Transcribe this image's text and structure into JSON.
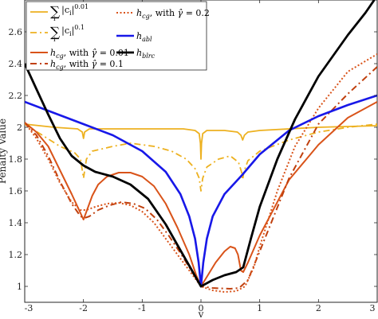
{
  "chart_data": {
    "type": "line",
    "title": "",
    "xlabel": "v",
    "ylabel": "Penalty Value",
    "xlim": [
      -3,
      3
    ],
    "ylim": [
      0.9,
      2.8
    ],
    "xticks": [
      -3,
      -2,
      -1,
      0,
      1,
      2,
      3
    ],
    "xtick_labels": [
      "-3",
      "-2",
      "-1",
      "0",
      "1",
      "2",
      "3"
    ],
    "yticks": [
      1,
      1.2,
      1.4,
      1.6,
      1.8,
      2,
      2.2,
      2.4,
      2.6
    ],
    "ytick_labels": [
      "1",
      "1.2",
      "1.4",
      "1.6",
      "1.8",
      "2",
      "2.2",
      "2.4",
      "2.6"
    ],
    "grid": false,
    "legend_position": "top-left",
    "series": [
      {
        "name": "∑|c_i|^0.01",
        "color": "#EDB120",
        "dash": "solid",
        "width": 1.8,
        "points": [
          [
            -3,
            2.02
          ],
          [
            -2.5,
            2.0
          ],
          [
            -2.1,
            1.99
          ],
          [
            -2.02,
            1.97
          ],
          [
            -2.0,
            1.93
          ],
          [
            -1.98,
            1.97
          ],
          [
            -1.9,
            1.99
          ],
          [
            -1.0,
            1.99
          ],
          [
            -0.3,
            1.99
          ],
          [
            -0.1,
            1.98
          ],
          [
            -0.03,
            1.96
          ],
          [
            -0.01,
            1.9
          ],
          [
            0,
            1.8
          ],
          [
            0.01,
            1.9
          ],
          [
            0.03,
            1.96
          ],
          [
            0.1,
            1.98
          ],
          [
            0.4,
            1.98
          ],
          [
            0.62,
            1.97
          ],
          [
            0.68,
            1.95
          ],
          [
            0.71,
            1.92
          ],
          [
            0.74,
            1.95
          ],
          [
            0.8,
            1.97
          ],
          [
            1.0,
            1.98
          ],
          [
            2.0,
            2.0
          ],
          [
            3,
            2.01
          ]
        ]
      },
      {
        "name": "∑|c_i|^0.1",
        "color": "#EDB120",
        "dash": "8,4,2,4",
        "width": 1.8,
        "points": [
          [
            -3,
            2.02
          ],
          [
            -2.7,
            1.95
          ],
          [
            -2.4,
            1.88
          ],
          [
            -2.15,
            1.84
          ],
          [
            -2.05,
            1.8
          ],
          [
            -2.0,
            1.68
          ],
          [
            -1.95,
            1.8
          ],
          [
            -1.85,
            1.85
          ],
          [
            -1.5,
            1.88
          ],
          [
            -1.2,
            1.9
          ],
          [
            -0.8,
            1.88
          ],
          [
            -0.5,
            1.85
          ],
          [
            -0.25,
            1.8
          ],
          [
            -0.1,
            1.74
          ],
          [
            -0.03,
            1.68
          ],
          [
            0,
            1.6
          ],
          [
            0.03,
            1.68
          ],
          [
            0.1,
            1.75
          ],
          [
            0.3,
            1.8
          ],
          [
            0.5,
            1.82
          ],
          [
            0.64,
            1.78
          ],
          [
            0.69,
            1.72
          ],
          [
            0.71,
            1.67
          ],
          [
            0.73,
            1.72
          ],
          [
            0.8,
            1.79
          ],
          [
            1.0,
            1.85
          ],
          [
            1.5,
            1.92
          ],
          [
            2.0,
            1.97
          ],
          [
            2.5,
            2.0
          ],
          [
            3,
            2.02
          ]
        ]
      },
      {
        "name": "h_cg, with γ̂ = 0.01",
        "color": "#D95319",
        "dash": "solid",
        "width": 2.0,
        "points": [
          [
            -3,
            2.03
          ],
          [
            -2.8,
            1.97
          ],
          [
            -2.6,
            1.88
          ],
          [
            -2.4,
            1.73
          ],
          [
            -2.2,
            1.58
          ],
          [
            -2.05,
            1.46
          ],
          [
            -2.0,
            1.42
          ],
          [
            -1.95,
            1.47
          ],
          [
            -1.85,
            1.57
          ],
          [
            -1.75,
            1.64
          ],
          [
            -1.6,
            1.69
          ],
          [
            -1.4,
            1.715
          ],
          [
            -1.2,
            1.715
          ],
          [
            -1.0,
            1.69
          ],
          [
            -0.8,
            1.63
          ],
          [
            -0.6,
            1.52
          ],
          [
            -0.4,
            1.37
          ],
          [
            -0.2,
            1.2
          ],
          [
            -0.08,
            1.07
          ],
          [
            0,
            1.0
          ],
          [
            0.1,
            1.06
          ],
          [
            0.25,
            1.15
          ],
          [
            0.4,
            1.22
          ],
          [
            0.5,
            1.25
          ],
          [
            0.58,
            1.24
          ],
          [
            0.63,
            1.2
          ],
          [
            0.68,
            1.1
          ],
          [
            0.72,
            1.09
          ],
          [
            0.8,
            1.15
          ],
          [
            1.0,
            1.32
          ],
          [
            1.5,
            1.67
          ],
          [
            2.0,
            1.89
          ],
          [
            2.5,
            2.06
          ],
          [
            3,
            2.16
          ]
        ]
      },
      {
        "name": "h_cg, with γ̂ = 0.1",
        "color": "#C0400E",
        "dash": "8,4,2,4",
        "width": 2.0,
        "points": [
          [
            -3,
            2.03
          ],
          [
            -2.8,
            1.95
          ],
          [
            -2.6,
            1.82
          ],
          [
            -2.4,
            1.66
          ],
          [
            -2.2,
            1.52
          ],
          [
            -2.05,
            1.44
          ],
          [
            -1.98,
            1.43
          ],
          [
            -1.9,
            1.44
          ],
          [
            -1.75,
            1.48
          ],
          [
            -1.55,
            1.51
          ],
          [
            -1.35,
            1.53
          ],
          [
            -1.15,
            1.52
          ],
          [
            -0.95,
            1.49
          ],
          [
            -0.75,
            1.42
          ],
          [
            -0.55,
            1.32
          ],
          [
            -0.35,
            1.21
          ],
          [
            -0.15,
            1.09
          ],
          [
            0,
            1.0
          ],
          [
            0.2,
            0.99
          ],
          [
            0.5,
            0.985
          ],
          [
            0.65,
            0.99
          ],
          [
            0.8,
            1.04
          ],
          [
            1.0,
            1.22
          ],
          [
            1.5,
            1.68
          ],
          [
            2.0,
            2.02
          ],
          [
            2.5,
            2.21
          ],
          [
            3,
            2.38
          ]
        ]
      },
      {
        "name": "h_cg, with γ̂ = 0.2",
        "color": "#D95319",
        "dash": "2,2.5",
        "width": 2.0,
        "points": [
          [
            -3,
            2.03
          ],
          [
            -2.8,
            1.93
          ],
          [
            -2.6,
            1.8
          ],
          [
            -2.4,
            1.65
          ],
          [
            -2.2,
            1.53
          ],
          [
            -2.05,
            1.48
          ],
          [
            -1.95,
            1.48
          ],
          [
            -1.8,
            1.5
          ],
          [
            -1.6,
            1.52
          ],
          [
            -1.4,
            1.525
          ],
          [
            -1.2,
            1.51
          ],
          [
            -1.0,
            1.47
          ],
          [
            -0.8,
            1.4
          ],
          [
            -0.6,
            1.3
          ],
          [
            -0.4,
            1.2
          ],
          [
            -0.2,
            1.1
          ],
          [
            0,
            1.0
          ],
          [
            0.2,
            0.975
          ],
          [
            0.4,
            0.965
          ],
          [
            0.6,
            0.97
          ],
          [
            0.75,
            1.0
          ],
          [
            0.9,
            1.12
          ],
          [
            1.0,
            1.25
          ],
          [
            1.3,
            1.6
          ],
          [
            1.6,
            1.88
          ],
          [
            2.0,
            2.12
          ],
          [
            2.5,
            2.35
          ],
          [
            3,
            2.46
          ]
        ]
      },
      {
        "name": "h_abl",
        "color": "#1818E8",
        "dash": "solid",
        "width": 2.6,
        "points": [
          [
            -3,
            2.16
          ],
          [
            -2.5,
            2.09
          ],
          [
            -2.0,
            2.02
          ],
          [
            -1.5,
            1.95
          ],
          [
            -1.0,
            1.85
          ],
          [
            -0.6,
            1.72
          ],
          [
            -0.35,
            1.58
          ],
          [
            -0.2,
            1.44
          ],
          [
            -0.1,
            1.3
          ],
          [
            -0.04,
            1.15
          ],
          [
            0,
            1.0
          ],
          [
            0.04,
            1.15
          ],
          [
            0.1,
            1.3
          ],
          [
            0.2,
            1.44
          ],
          [
            0.4,
            1.58
          ],
          [
            0.7,
            1.7
          ],
          [
            1.0,
            1.83
          ],
          [
            1.5,
            1.98
          ],
          [
            2.0,
            2.07
          ],
          [
            2.5,
            2.14
          ],
          [
            3,
            2.2
          ]
        ]
      },
      {
        "name": "h_blrc",
        "color": "#000000",
        "dash": "solid",
        "width": 2.8,
        "points": [
          [
            -3,
            2.4
          ],
          [
            -2.8,
            2.24
          ],
          [
            -2.6,
            2.08
          ],
          [
            -2.4,
            1.93
          ],
          [
            -2.2,
            1.82
          ],
          [
            -2.0,
            1.76
          ],
          [
            -1.8,
            1.72
          ],
          [
            -1.5,
            1.69
          ],
          [
            -1.2,
            1.64
          ],
          [
            -0.9,
            1.55
          ],
          [
            -0.6,
            1.39
          ],
          [
            -0.4,
            1.26
          ],
          [
            -0.2,
            1.13
          ],
          [
            0,
            1.0
          ],
          [
            0.2,
            1.04
          ],
          [
            0.4,
            1.07
          ],
          [
            0.6,
            1.09
          ],
          [
            0.72,
            1.12
          ],
          [
            0.85,
            1.3
          ],
          [
            1.0,
            1.5
          ],
          [
            1.3,
            1.8
          ],
          [
            1.6,
            2.05
          ],
          [
            2.0,
            2.32
          ],
          [
            2.5,
            2.58
          ],
          [
            2.8,
            2.72
          ],
          [
            2.95,
            2.8
          ]
        ]
      }
    ]
  }
}
